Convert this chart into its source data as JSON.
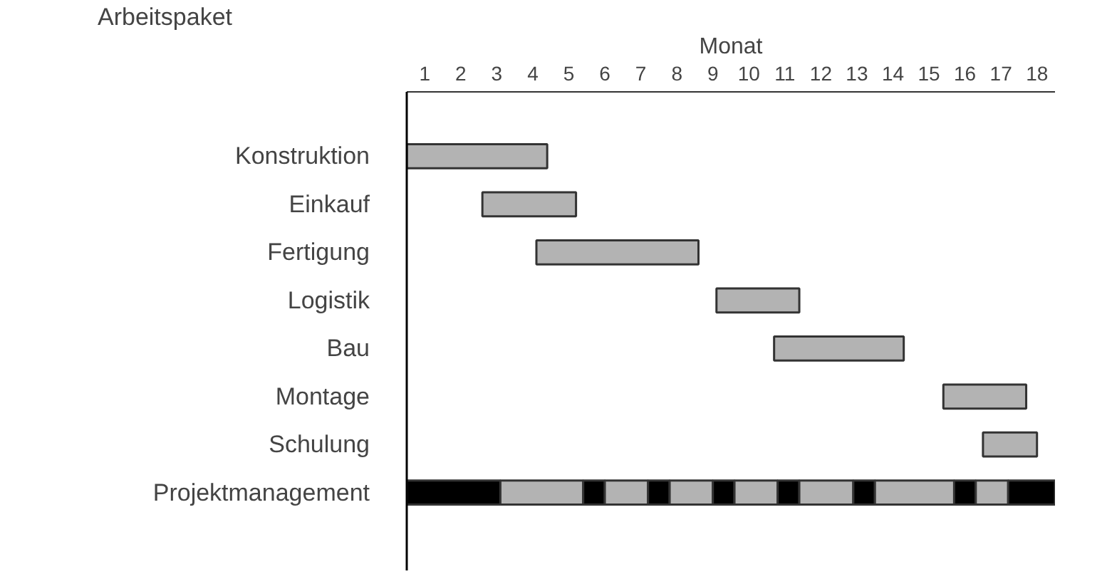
{
  "chart_data": {
    "type": "bar",
    "orientation": "horizontal",
    "xlabel": "Monat",
    "ylabel": "Arbeitspaket",
    "categories": [
      "Konstruktion",
      "Einkauf",
      "Fertigung",
      "Logistik",
      "Bau",
      "Montage",
      "Schulung",
      "Projektmanagement"
    ],
    "xlim": [
      0,
      18
    ],
    "xticks": [
      {
        "value": 0.5,
        "label": "1"
      },
      {
        "value": 1.5,
        "label": "2"
      },
      {
        "value": 2.5,
        "label": "3"
      },
      {
        "value": 3.5,
        "label": "4"
      },
      {
        "value": 4.5,
        "label": "5"
      },
      {
        "value": 5.5,
        "label": "6"
      },
      {
        "value": 6.5,
        "label": "7"
      },
      {
        "value": 7.5,
        "label": "8"
      },
      {
        "value": 8.5,
        "label": "9"
      },
      {
        "value": 9.5,
        "label": "10"
      },
      {
        "value": 10.5,
        "label": "11"
      },
      {
        "value": 11.5,
        "label": "12"
      },
      {
        "value": 12.5,
        "label": "13"
      },
      {
        "value": 13.5,
        "label": "14"
      },
      {
        "value": 14.5,
        "label": "15"
      },
      {
        "value": 15.5,
        "label": "16"
      },
      {
        "value": 16.5,
        "label": "17"
      },
      {
        "value": 17.5,
        "label": "18"
      }
    ],
    "series": [
      {
        "colors": [
          "#b3b3b3",
          "#b3b3b3",
          "#b3b3b3",
          "#b3b3b3",
          "#b3b3b3",
          "#b3b3b3",
          "#b3b3b3",
          "#000000"
        ],
        "base": [
          0,
          2.1,
          3.6,
          8.6,
          10.2,
          14.9,
          16.0,
          0
        ],
        "values": [
          3.9,
          2.6,
          4.5,
          2.3,
          3.6,
          2.3,
          1.5,
          2.6
        ]
      },
      {
        "color": "#b3b3b3",
        "base": [
          null,
          null,
          null,
          null,
          null,
          null,
          null,
          2.6
        ],
        "values": [
          null,
          null,
          null,
          null,
          null,
          null,
          null,
          2.3
        ]
      },
      {
        "color": "#000000",
        "base": [
          null,
          null,
          null,
          null,
          null,
          null,
          null,
          4.9
        ],
        "values": [
          null,
          null,
          null,
          null,
          null,
          null,
          null,
          0.6
        ]
      },
      {
        "color": "#b3b3b3",
        "base": [
          null,
          null,
          null,
          null,
          null,
          null,
          null,
          5.5
        ],
        "values": [
          null,
          null,
          null,
          null,
          null,
          null,
          null,
          1.2
        ]
      },
      {
        "color": "#000000",
        "base": [
          null,
          null,
          null,
          null,
          null,
          null,
          null,
          6.7
        ],
        "values": [
          null,
          null,
          null,
          null,
          null,
          null,
          null,
          0.6
        ]
      },
      {
        "color": "#b3b3b3",
        "base": [
          null,
          null,
          null,
          null,
          null,
          null,
          null,
          7.3
        ],
        "values": [
          null,
          null,
          null,
          null,
          null,
          null,
          null,
          1.2
        ]
      },
      {
        "color": "#000000",
        "base": [
          null,
          null,
          null,
          null,
          null,
          null,
          null,
          8.5
        ],
        "values": [
          null,
          null,
          null,
          null,
          null,
          null,
          null,
          0.6
        ]
      },
      {
        "color": "#b3b3b3",
        "base": [
          null,
          null,
          null,
          null,
          null,
          null,
          null,
          9.1
        ],
        "values": [
          null,
          null,
          null,
          null,
          null,
          null,
          null,
          1.2
        ]
      },
      {
        "color": "#000000",
        "base": [
          null,
          null,
          null,
          null,
          null,
          null,
          null,
          10.3
        ],
        "values": [
          null,
          null,
          null,
          null,
          null,
          null,
          null,
          0.6
        ]
      },
      {
        "color": "#b3b3b3",
        "base": [
          null,
          null,
          null,
          null,
          null,
          null,
          null,
          10.9
        ],
        "values": [
          null,
          null,
          null,
          null,
          null,
          null,
          null,
          1.5
        ]
      },
      {
        "color": "#000000",
        "base": [
          null,
          null,
          null,
          null,
          null,
          null,
          null,
          12.4
        ],
        "values": [
          null,
          null,
          null,
          null,
          null,
          null,
          null,
          0.6
        ]
      },
      {
        "color": "#b3b3b3",
        "base": [
          null,
          null,
          null,
          null,
          null,
          null,
          null,
          13.0
        ],
        "values": [
          null,
          null,
          null,
          null,
          null,
          null,
          null,
          2.2
        ]
      },
      {
        "color": "#000000",
        "base": [
          null,
          null,
          null,
          null,
          null,
          null,
          null,
          15.2
        ],
        "values": [
          null,
          null,
          null,
          null,
          null,
          null,
          null,
          0.6
        ]
      },
      {
        "color": "#b3b3b3",
        "base": [
          null,
          null,
          null,
          null,
          null,
          null,
          null,
          15.8
        ],
        "values": [
          null,
          null,
          null,
          null,
          null,
          null,
          null,
          0.9
        ]
      },
      {
        "color": "#000000",
        "base": [
          null,
          null,
          null,
          null,
          null,
          null,
          null,
          16.7
        ],
        "values": [
          null,
          null,
          null,
          null,
          null,
          null,
          null,
          1.3
        ]
      }
    ]
  }
}
